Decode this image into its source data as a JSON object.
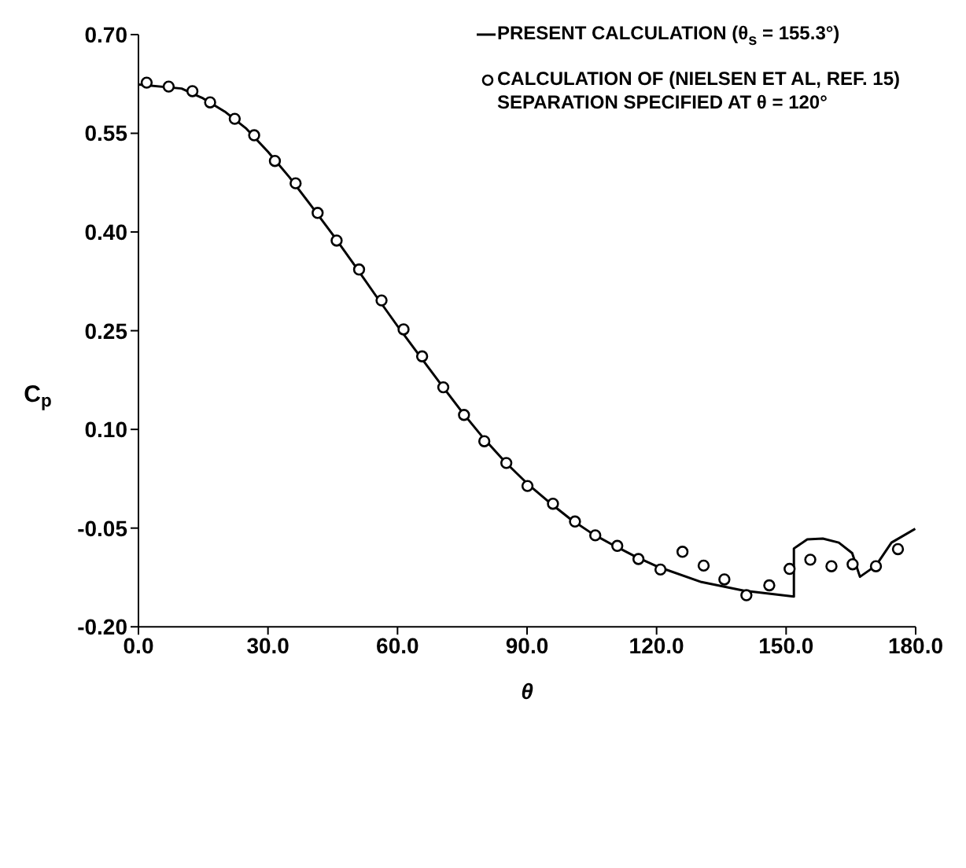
{
  "chart_data": {
    "type": "line",
    "xlabel": "θ",
    "ylabel": "C$_{p}$",
    "xlim": [
      0,
      180
    ],
    "xticks": [
      {
        "value": 0,
        "label": "0.0"
      },
      {
        "value": 30,
        "label": "30.0"
      },
      {
        "value": 60,
        "label": "60.0"
      },
      {
        "value": 90,
        "label": "90.0"
      },
      {
        "value": 120,
        "label": "120.0"
      },
      {
        "value": 150,
        "label": "150.0"
      },
      {
        "value": 180,
        "label": "180.0"
      }
    ],
    "ylim": [
      -0.2,
      0.7
    ],
    "yticks": [
      {
        "value": 0.7,
        "label": "0.70"
      },
      {
        "value": 0.55,
        "label": "0.55"
      },
      {
        "value": 0.4,
        "label": "0.40"
      },
      {
        "value": 0.25,
        "label": "0.25"
      },
      {
        "value": 0.1,
        "label": "0.10"
      },
      {
        "value": -0.05,
        "label": "-0.05"
      },
      {
        "value": -0.2,
        "label": "-0.20"
      }
    ],
    "grid": false,
    "legend": "top right",
    "series": [
      {
        "name": "PRESENT CALCULATION (θ$_{s}$ = 155.3°)",
        "color": "#000000",
        "marker": "none",
        "line_style": "solid",
        "x": [
          0,
          10,
          15,
          20,
          25,
          30,
          35,
          40,
          45,
          50,
          55,
          60,
          65,
          70,
          75,
          80,
          85,
          90,
          95,
          100,
          105,
          110,
          115,
          120,
          130.4,
          140.2,
          151.8,
          151.8,
          154.9,
          158.5,
          162.2,
          165.3,
          167.1,
          170.8,
          174.4,
          179.9
        ],
        "values": [
          0.624,
          0.618,
          0.603,
          0.583,
          0.557,
          0.522,
          0.483,
          0.44,
          0.396,
          0.35,
          0.303,
          0.257,
          0.213,
          0.169,
          0.126,
          0.086,
          0.05,
          0.018,
          -0.01,
          -0.036,
          -0.058,
          -0.076,
          -0.093,
          -0.108,
          -0.132,
          -0.145,
          -0.154,
          -0.081,
          -0.067,
          -0.066,
          -0.072,
          -0.088,
          -0.124,
          -0.107,
          -0.072,
          -0.051
        ]
      },
      {
        "name": "CALCULATION OF (NIELSEN ET AL, REF. 15) SEPARATION SPECIFIED AT θ = 120°",
        "type": "scatter",
        "color": "#000000",
        "marker": "circle",
        "x": [
          1.9,
          7.0,
          12.5,
          16.6,
          22.3,
          26.8,
          31.6,
          36.4,
          41.5,
          45.9,
          51.1,
          56.3,
          61.4,
          65.7,
          70.6,
          75.4,
          80.1,
          85.2,
          90.1,
          96.0,
          101.1,
          105.8,
          110.9,
          115.8,
          120.9,
          126.0,
          130.9,
          135.7,
          140.8,
          146.1,
          150.8,
          155.6,
          160.5,
          165.4,
          170.8,
          175.9
        ],
        "values": [
          0.627,
          0.621,
          0.614,
          0.597,
          0.572,
          0.547,
          0.508,
          0.474,
          0.429,
          0.387,
          0.343,
          0.296,
          0.252,
          0.211,
          0.164,
          0.122,
          0.082,
          0.049,
          0.014,
          -0.013,
          -0.04,
          -0.061,
          -0.077,
          -0.097,
          -0.113,
          -0.086,
          -0.107,
          -0.128,
          -0.152,
          -0.137,
          -0.112,
          -0.098,
          -0.108,
          -0.105,
          -0.108,
          -0.082
        ]
      }
    ]
  }
}
